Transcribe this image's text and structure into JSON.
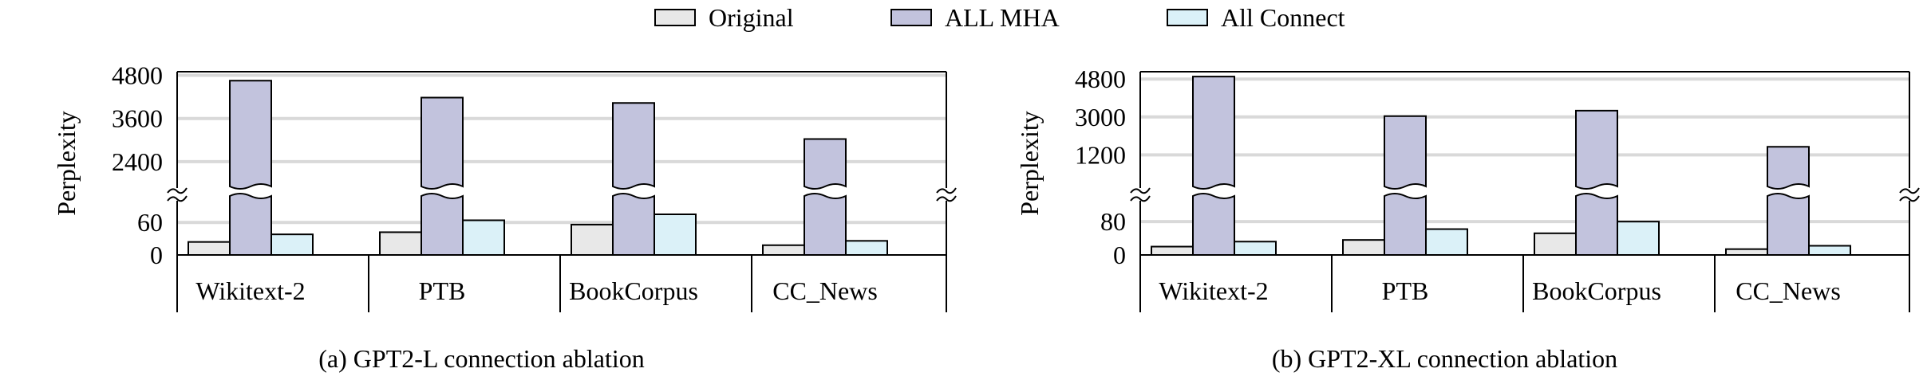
{
  "legend": [
    {
      "label": "Original",
      "color": "#e8e8e8"
    },
    {
      "label": "ALL MHA",
      "color": "#c2c3dd"
    },
    {
      "label": "All Connect",
      "color": "#dbf1f8"
    }
  ],
  "chart_data": [
    {
      "type": "bar",
      "caption": "(a) GPT2-L connection ablation",
      "ylabel": "Perplexity",
      "categories": [
        "Wikitext-2",
        "PTB",
        "BookCorpus",
        "CC_News"
      ],
      "lower_ticks": [
        "0",
        "60"
      ],
      "upper_ticks": [
        "2400",
        "3600",
        "4800"
      ],
      "lower_range": [
        0,
        100
      ],
      "upper_range": [
        1800,
        4900
      ],
      "series": [
        {
          "name": "Original",
          "values": [
            24,
            42,
            56,
            18
          ]
        },
        {
          "name": "ALL MHA",
          "values": [
            4650,
            4180,
            4030,
            3030
          ]
        },
        {
          "name": "All Connect",
          "values": [
            38,
            64,
            75,
            26
          ]
        }
      ]
    },
    {
      "type": "bar",
      "caption": "(b) GPT2-XL connection ablation",
      "ylabel": "Perplexity",
      "categories": [
        "Wikitext-2",
        "PTB",
        "BookCorpus",
        "CC_News"
      ],
      "lower_ticks": [
        "0",
        "80"
      ],
      "upper_ticks": [
        "1200",
        "3000",
        "4800"
      ],
      "lower_range": [
        0,
        130
      ],
      "upper_range": [
        -150,
        5150
      ],
      "series": [
        {
          "name": "Original",
          "values": [
            20,
            36,
            52,
            14
          ]
        },
        {
          "name": "ALL MHA",
          "values": [
            4920,
            3040,
            3300,
            1580
          ]
        },
        {
          "name": "All Connect",
          "values": [
            32,
            62,
            80,
            22
          ]
        }
      ]
    }
  ]
}
